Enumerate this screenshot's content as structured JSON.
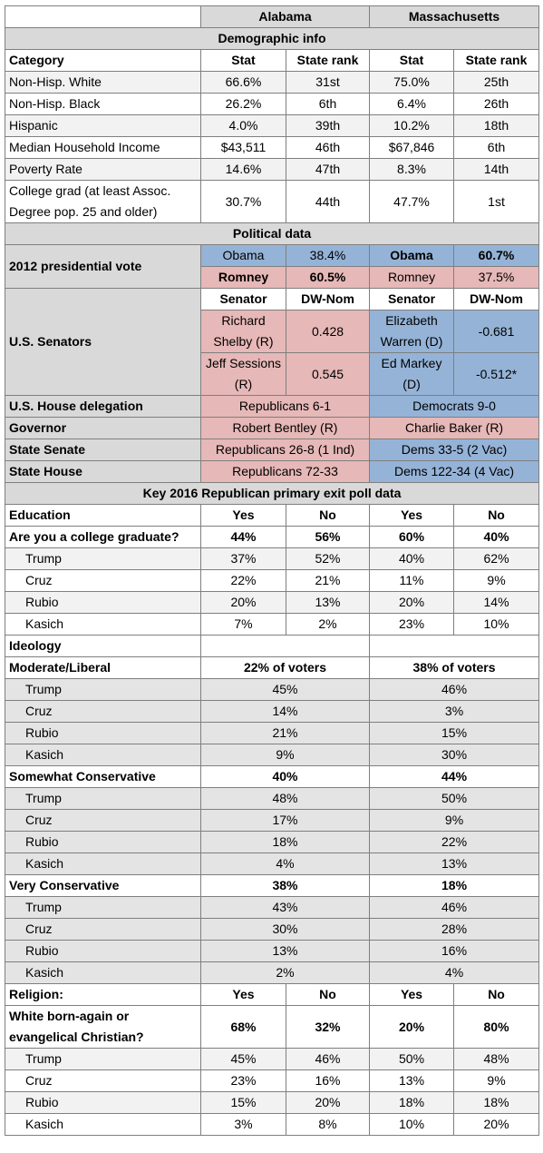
{
  "rows": [
    [
      "Alabama",
      "Massachusetts"
    ],
    [
      "Demographic info"
    ],
    [
      "Category",
      "Stat",
      "State rank",
      "Stat",
      "State rank"
    ],
    [
      "Non-Hisp. White",
      "66.6%",
      "31st",
      "75.0%",
      "25th"
    ],
    [
      "Non-Hisp. Black",
      "26.2%",
      "6th",
      "6.4%",
      "26th"
    ],
    [
      "Hispanic",
      "4.0%",
      "39th",
      "10.2%",
      "18th"
    ],
    [
      "Median Household Income",
      "$43,511",
      "46th",
      "$67,846",
      "6th"
    ],
    [
      "Poverty Rate",
      "14.6%",
      "47th",
      "8.3%",
      "14th"
    ],
    [
      "College grad (at least Assoc. Degree pop. 25 and older)",
      "30.7%",
      "44th",
      "47.7%",
      "1st"
    ],
    [
      "Political data"
    ],
    [
      "2012 presidential vote",
      "Obama",
      "38.4%",
      "Obama",
      "60.7%"
    ],
    [
      "Romney",
      "60.5%",
      "Romney",
      "37.5%"
    ],
    [
      "U.S. Senators",
      "Senator",
      "DW-Nom",
      "Senator",
      "DW-Nom"
    ],
    [
      "Richard Shelby (R)",
      "0.428",
      "Elizabeth Warren (D)",
      "-0.681"
    ],
    [
      "Jeff Sessions (R)",
      "0.545",
      "Ed Markey (D)",
      "-0.512*"
    ],
    [
      "U.S. House delegation",
      "Republicans 6-1",
      "Democrats 9-0"
    ],
    [
      "Governor",
      "Robert Bentley (R)",
      "Charlie Baker (R)"
    ],
    [
      "State Senate",
      "Republicans 26-8 (1 Ind)",
      "Dems 33-5 (2 Vac)"
    ],
    [
      "State House",
      "Republicans 72-33",
      "Dems 122-34 (4 Vac)"
    ],
    [
      "Key 2016 Republican primary exit poll data"
    ],
    [
      "Education",
      "Yes",
      "No",
      "Yes",
      "No"
    ],
    [
      "Are you a college graduate?",
      "44%",
      "56%",
      "60%",
      "40%"
    ],
    [
      "Trump",
      "37%",
      "52%",
      "40%",
      "62%"
    ],
    [
      "Cruz",
      "22%",
      "21%",
      "11%",
      "9%"
    ],
    [
      "Rubio",
      "20%",
      "13%",
      "20%",
      "14%"
    ],
    [
      "Kasich",
      "7%",
      "2%",
      "23%",
      "10%"
    ],
    [
      "Ideology"
    ],
    [
      "Moderate/Liberal",
      "22% of voters",
      "38% of voters"
    ],
    [
      "Trump",
      "45%",
      "46%"
    ],
    [
      "Cruz",
      "14%",
      "3%"
    ],
    [
      "Rubio",
      "21%",
      "15%"
    ],
    [
      "Kasich",
      "9%",
      "30%"
    ],
    [
      "Somewhat Conservative",
      "40%",
      "44%"
    ],
    [
      "Trump",
      "48%",
      "50%"
    ],
    [
      "Cruz",
      "17%",
      "9%"
    ],
    [
      "Rubio",
      "18%",
      "22%"
    ],
    [
      "Kasich",
      "4%",
      "13%"
    ],
    [
      "Very Conservative",
      "38%",
      "18%"
    ],
    [
      "Trump",
      "43%",
      "46%"
    ],
    [
      "Cruz",
      "30%",
      "28%"
    ],
    [
      "Rubio",
      "13%",
      "16%"
    ],
    [
      "Kasich",
      "2%",
      "4%"
    ],
    [
      "Religion:",
      "Yes",
      "No",
      "Yes",
      "No"
    ],
    [
      "White born-again or evangelical Christian?",
      "68%",
      "32%",
      "20%",
      "80%"
    ],
    [
      "Trump",
      "45%",
      "46%",
      "50%",
      "48%"
    ],
    [
      "Cruz",
      "23%",
      "16%",
      "13%",
      "9%"
    ],
    [
      "Rubio",
      "15%",
      "20%",
      "18%",
      "18%"
    ],
    [
      "Kasich",
      "3%",
      "8%",
      "10%",
      "20%"
    ]
  ]
}
